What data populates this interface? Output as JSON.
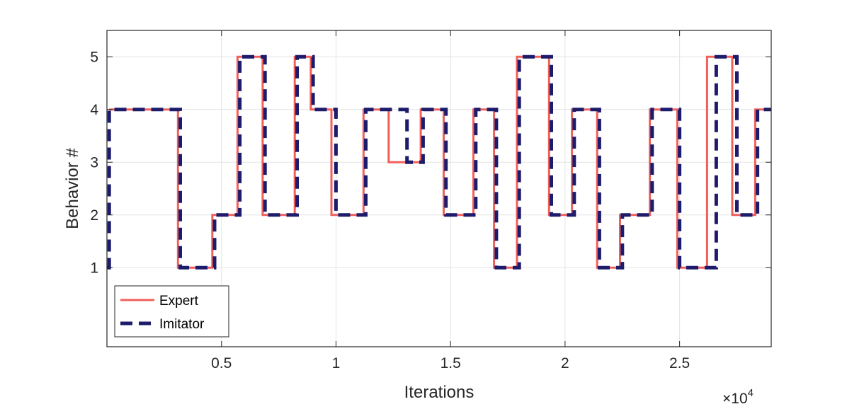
{
  "chart_data": {
    "type": "line",
    "xlabel": "Iterations",
    "ylabel": "Behavior #",
    "x_multiplier_label": "×10",
    "x_multiplier_exponent": "4",
    "xlim": [
      0,
      2.9
    ],
    "ylim": [
      -0.5,
      5.5
    ],
    "x_ticks": [
      0.5,
      1,
      1.5,
      2,
      2.5
    ],
    "x_tick_labels": [
      "0.5",
      "1",
      "1.5",
      "2",
      "2.5"
    ],
    "y_ticks": [
      1,
      2,
      3,
      4,
      5
    ],
    "y_tick_labels": [
      "1",
      "2",
      "3",
      "4",
      "5"
    ],
    "grid": true,
    "legend_position": "bottom-left",
    "series": [
      {
        "name": "Expert",
        "color": "#f0605b",
        "style": "solid",
        "x": [
          0.01,
          0.31,
          0.31,
          0.46,
          0.46,
          0.57,
          0.57,
          0.68,
          0.68,
          0.82,
          0.82,
          0.89,
          0.89,
          0.98,
          0.98,
          1.12,
          1.12,
          1.23,
          1.23,
          1.37,
          1.37,
          1.47,
          1.47,
          1.6,
          1.6,
          1.69,
          1.69,
          1.79,
          1.79,
          1.93,
          1.93,
          2.03,
          2.03,
          2.14,
          2.14,
          2.24,
          2.24,
          2.37,
          2.37,
          2.49,
          2.49,
          2.62,
          2.62,
          2.73,
          2.73,
          2.83,
          2.83,
          2.9
        ],
        "y": [
          4,
          4,
          1,
          1,
          2,
          2,
          5,
          5,
          2,
          2,
          5,
          5,
          4,
          4,
          2,
          2,
          4,
          4,
          3,
          3,
          4,
          4,
          2,
          2,
          4,
          4,
          1,
          1,
          5,
          5,
          2,
          2,
          4,
          4,
          1,
          1,
          2,
          2,
          4,
          4,
          1,
          1,
          5,
          5,
          2,
          2,
          4,
          4
        ]
      },
      {
        "name": "Imitator",
        "color": "#1d1b6b",
        "style": "dashed",
        "x": [
          0,
          0.01,
          0.01,
          0.32,
          0.32,
          0.47,
          0.47,
          0.58,
          0.58,
          0.69,
          0.69,
          0.83,
          0.83,
          0.9,
          0.9,
          1.0,
          1.0,
          1.13,
          1.13,
          1.31,
          1.31,
          1.38,
          1.38,
          1.48,
          1.48,
          1.61,
          1.61,
          1.7,
          1.7,
          1.8,
          1.8,
          1.94,
          1.94,
          2.04,
          2.04,
          2.15,
          2.15,
          2.25,
          2.25,
          2.38,
          2.38,
          2.5,
          2.5,
          2.66,
          2.66,
          2.75,
          2.75,
          2.84,
          2.84,
          2.9
        ],
        "y": [
          1,
          1,
          4,
          4,
          1,
          1,
          2,
          2,
          5,
          5,
          2,
          2,
          5,
          5,
          4,
          4,
          2,
          2,
          4,
          4,
          3,
          3,
          4,
          4,
          2,
          2,
          4,
          4,
          1,
          1,
          5,
          5,
          2,
          2,
          4,
          4,
          1,
          1,
          2,
          2,
          4,
          4,
          1,
          1,
          5,
          5,
          2,
          2,
          4,
          4
        ]
      }
    ]
  }
}
